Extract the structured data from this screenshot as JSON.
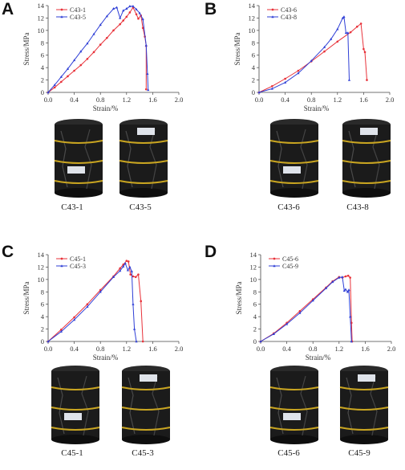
{
  "colors": {
    "red": "#e8323a",
    "blue": "#2f3fd6",
    "rock": "#1b1b1b",
    "tape": "#c9a521"
  },
  "chart_data": [
    {
      "panel": "A",
      "type": "line",
      "xlabel": "Strain/%",
      "ylabel": "Stress/MPa",
      "xlim": [
        0,
        2.0
      ],
      "ylim": [
        0,
        14
      ],
      "xticks": [
        "0.0",
        "0.4",
        "0.8",
        "1.2",
        "1.6",
        "2.0"
      ],
      "yticks": [
        "0",
        "2",
        "4",
        "6",
        "8",
        "10",
        "12",
        "14"
      ],
      "legend": "top-left",
      "series": [
        {
          "name": "C43-1",
          "color": "#e8323a",
          "x": [
            0,
            0.1,
            0.2,
            0.3,
            0.4,
            0.5,
            0.6,
            0.7,
            0.8,
            0.9,
            1.0,
            1.1,
            1.15,
            1.2,
            1.25,
            1.3,
            1.35,
            1.38,
            1.42,
            1.45,
            1.48,
            1.5,
            1.5
          ],
          "y": [
            0,
            0.8,
            1.7,
            2.6,
            3.5,
            4.4,
            5.4,
            6.5,
            7.7,
            8.8,
            10.0,
            11.0,
            11.6,
            12.2,
            12.9,
            13.7,
            12.6,
            11.9,
            12.4,
            10.4,
            9.0,
            7.5,
            0.5
          ]
        },
        {
          "name": "C43-5",
          "color": "#2f3fd6",
          "x": [
            0,
            0.1,
            0.2,
            0.3,
            0.4,
            0.5,
            0.6,
            0.7,
            0.8,
            0.9,
            1.0,
            1.05,
            1.1,
            1.15,
            1.2,
            1.25,
            1.3,
            1.35,
            1.4,
            1.45,
            1.5,
            1.52,
            1.53
          ],
          "y": [
            0,
            1.2,
            2.5,
            3.8,
            5.2,
            6.6,
            7.9,
            9.4,
            10.9,
            12.3,
            13.5,
            13.7,
            12.0,
            13.2,
            13.5,
            13.9,
            13.9,
            13.4,
            12.8,
            11.8,
            7.6,
            3.0,
            0.4
          ]
        }
      ]
    },
    {
      "panel": "B",
      "type": "line",
      "xlabel": "Strain/%",
      "ylabel": "Stress/MPa",
      "xlim": [
        0,
        2.0
      ],
      "ylim": [
        0,
        14
      ],
      "xticks": [
        "0.0",
        "0.4",
        "0.8",
        "1.2",
        "1.6",
        "2.0"
      ],
      "yticks": [
        "0",
        "2",
        "4",
        "6",
        "8",
        "10",
        "12",
        "14"
      ],
      "legend": "top-left",
      "series": [
        {
          "name": "C43-6",
          "color": "#e8323a",
          "x": [
            0,
            0.2,
            0.4,
            0.6,
            0.8,
            1.0,
            1.2,
            1.4,
            1.5,
            1.56,
            1.6,
            1.62,
            1.65
          ],
          "y": [
            0,
            1.0,
            2.2,
            3.5,
            5.0,
            6.6,
            8.2,
            9.7,
            10.6,
            11.1,
            7.0,
            6.5,
            2.0
          ]
        },
        {
          "name": "C43-8",
          "color": "#2f3fd6",
          "x": [
            0,
            0.2,
            0.4,
            0.6,
            0.8,
            1.0,
            1.1,
            1.2,
            1.28,
            1.3,
            1.33,
            1.36,
            1.38
          ],
          "y": [
            0,
            0.6,
            1.6,
            3.1,
            5.1,
            7.3,
            8.6,
            10.2,
            12.0,
            12.2,
            9.6,
            9.6,
            2.0
          ]
        }
      ]
    },
    {
      "panel": "C",
      "type": "line",
      "xlabel": "Strain/%",
      "ylabel": "Stress/MPa",
      "xlim": [
        0,
        2.0
      ],
      "ylim": [
        0,
        14
      ],
      "xticks": [
        "0.0",
        "0.4",
        "0.8",
        "1.2",
        "1.6",
        "2.0"
      ],
      "yticks": [
        "0",
        "2",
        "4",
        "6",
        "8",
        "10",
        "12",
        "14"
      ],
      "legend": "top-left",
      "series": [
        {
          "name": "C45-1",
          "color": "#e8323a",
          "x": [
            0,
            0.2,
            0.4,
            0.6,
            0.8,
            1.0,
            1.1,
            1.15,
            1.2,
            1.23,
            1.26,
            1.3,
            1.34,
            1.38,
            1.42,
            1.45
          ],
          "y": [
            0,
            1.9,
            3.9,
            6.0,
            8.3,
            10.5,
            11.8,
            12.4,
            13.0,
            12.9,
            10.8,
            10.5,
            10.4,
            10.8,
            6.5,
            0.0
          ]
        },
        {
          "name": "C45-3",
          "color": "#2f3fd6",
          "x": [
            0,
            0.2,
            0.4,
            0.6,
            0.8,
            1.0,
            1.1,
            1.15,
            1.18,
            1.22,
            1.25,
            1.28,
            1.3,
            1.32,
            1.35
          ],
          "y": [
            0,
            1.6,
            3.5,
            5.6,
            8.0,
            10.4,
            11.4,
            12.1,
            12.6,
            11.5,
            12.0,
            11.3,
            6.0,
            2.0,
            0.0
          ]
        }
      ]
    },
    {
      "panel": "D",
      "type": "line",
      "xlabel": "Strain/%",
      "ylabel": "Stress/MPa",
      "xlim": [
        0,
        2.0
      ],
      "ylim": [
        0,
        14
      ],
      "xticks": [
        "0.0",
        "0.4",
        "0.8",
        "1.2",
        "1.6",
        "2.0"
      ],
      "yticks": [
        "0",
        "2",
        "4",
        "6",
        "8",
        "10",
        "12",
        "14"
      ],
      "legend": "top-left",
      "series": [
        {
          "name": "C45-6",
          "color": "#e8323a",
          "x": [
            0,
            0.2,
            0.4,
            0.6,
            0.8,
            1.0,
            1.1,
            1.2,
            1.25,
            1.3,
            1.34,
            1.37,
            1.39,
            1.4
          ],
          "y": [
            0,
            1.3,
            3.0,
            4.9,
            6.8,
            8.7,
            9.7,
            10.4,
            10.3,
            10.5,
            10.6,
            10.3,
            3.0,
            0.0
          ]
        },
        {
          "name": "C45-9",
          "color": "#2f3fd6",
          "x": [
            0,
            0.2,
            0.4,
            0.6,
            0.8,
            1.0,
            1.1,
            1.2,
            1.25,
            1.28,
            1.3,
            1.33,
            1.35,
            1.37,
            1.39
          ],
          "y": [
            0,
            1.2,
            2.8,
            4.6,
            6.6,
            8.6,
            9.6,
            10.3,
            10.4,
            8.2,
            8.4,
            8.0,
            8.3,
            4.0,
            0.0
          ]
        }
      ]
    }
  ],
  "panels": [
    {
      "letter": "A",
      "samples": [
        "C43-1",
        "C43-5"
      ]
    },
    {
      "letter": "B",
      "samples": [
        "C43-6",
        "C43-8"
      ]
    },
    {
      "letter": "C",
      "samples": [
        "C45-1",
        "C45-3"
      ]
    },
    {
      "letter": "D",
      "samples": [
        "C45-6",
        "C45-9"
      ]
    }
  ]
}
